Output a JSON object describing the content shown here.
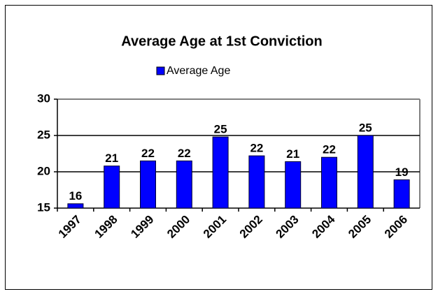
{
  "chart_data": {
    "type": "bar",
    "title": "Average Age at 1st Conviction",
    "categories": [
      "1997",
      "1998",
      "1999",
      "2000",
      "2001",
      "2002",
      "2003",
      "2004",
      "2005",
      "2006"
    ],
    "series": [
      {
        "name": "Average Age",
        "color": "#0000ff",
        "values": [
          15.6,
          20.8,
          21.5,
          21.5,
          24.8,
          22.2,
          21.4,
          22.0,
          25.0,
          18.9
        ],
        "value_labels": [
          "16",
          "21",
          "22",
          "22",
          "25",
          "22",
          "21",
          "22",
          "25",
          "19"
        ]
      }
    ],
    "ylim": [
      15,
      30
    ],
    "yticks": [
      15,
      20,
      25,
      30
    ],
    "grid": true
  }
}
